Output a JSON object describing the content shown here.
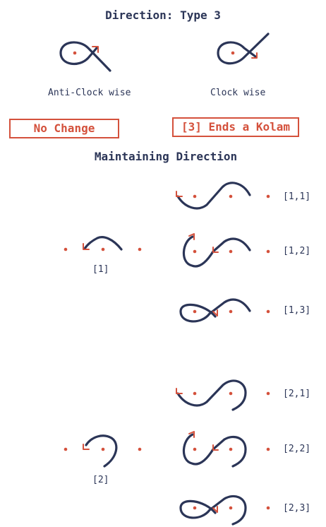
{
  "header": {
    "title": "Direction: Type 3"
  },
  "orientation": {
    "anticlockwise_label": "Anti-Clock wise",
    "clockwise_label": "Clock wise"
  },
  "boxes": {
    "no_change": "No Change",
    "ends_kolam": "[3] Ends a Kolam"
  },
  "section": {
    "title": "Maintaining Direction"
  },
  "groups": [
    {
      "base_label": "[1]",
      "variants": [
        "[1,1]",
        "[1,2]",
        "[1,3]"
      ]
    },
    {
      "base_label": "[2]",
      "variants": [
        "[2,1]",
        "[2,2]",
        "[2,3]"
      ]
    }
  ],
  "colors": {
    "stroke": "#2b3557",
    "accent": "#d4513c"
  }
}
